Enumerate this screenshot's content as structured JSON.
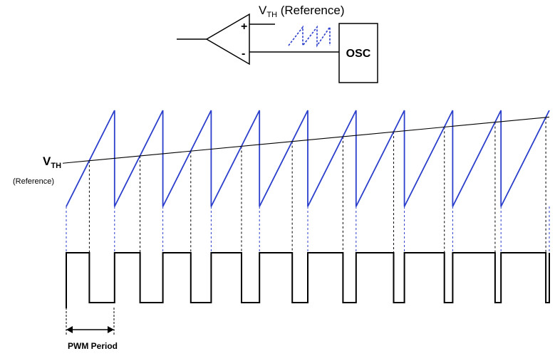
{
  "comparator": {
    "plus_label": "+",
    "minus_label": "-",
    "vth_main": "V",
    "vth_sub": "TH",
    "vth_suffix": " (Reference)",
    "osc_label": "OSC"
  },
  "timing": {
    "vth_main": "V",
    "vth_sub": "TH",
    "reference_label": "(Reference)",
    "pwm_period_label": "PWM Period",
    "cycles": 10,
    "reference_rise_fraction": [
      0.45,
      0.93
    ]
  },
  "colors": {
    "sawtooth": "#2b3fcc",
    "ink": "#000000",
    "guide_blue": "#2b3fcc"
  }
}
